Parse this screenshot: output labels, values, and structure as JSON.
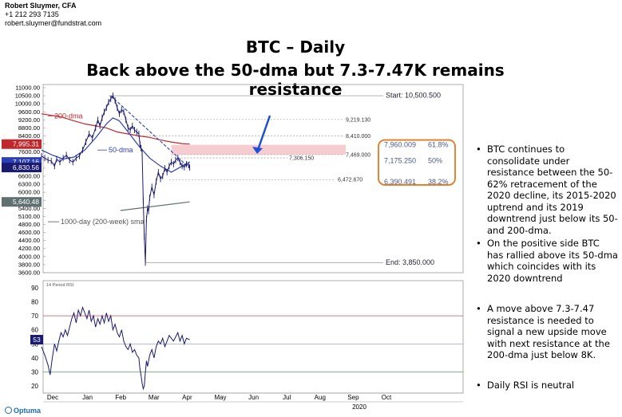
{
  "author": {
    "name": "Robert Sluymer, CFA",
    "phone": "+1 212 293 7135",
    "email": "robert.sluymer@fundstrat.com"
  },
  "title_line1": "BTC – Daily",
  "title_line2": "Back above the 50-dma but 7.3-7.47K remains resistance",
  "bullets": [
    "BTC continues to consolidate under resistance between the 50-62% retracement of the 2020 decline, its 2015-2020 uptrend and its 2019 downtrend just below its 50- and 200-dma.",
    "On the positive side BTC has rallied above its 50-dma which coincides with its 2020 downtrend",
    "A move above 7.3-7.47 resistance is needed to signal a new upside move with next resistance at the 200-dma just below 8K.",
    "Daily RSI is neutral"
  ],
  "logo": "Optuma",
  "colors": {
    "price": "#1a1a6e",
    "ma200": "#c0282d",
    "ma50": "#2b3fb8",
    "uptrend": "#607070",
    "resistance_zone": "#f3c4c9",
    "callout_border": "#e87722",
    "arrow": "#1f4fd6",
    "rsi": "#1a1a6e",
    "rsi_hi": "#c0282d",
    "rsi_lo": "#2e9a3a"
  },
  "chart_data": {
    "type": "line",
    "ylim": [
      3600,
      11000
    ],
    "y_ticks": [
      "11000.00",
      "10500.00",
      "10000.00",
      "9600.00",
      "9200.00",
      "8800.00",
      "8400.00",
      "8000.00",
      "7600.00",
      "7200.00",
      "6800.00",
      "6600.00",
      "6300.00",
      "6000.00",
      "5700.00",
      "5400.00",
      "5100.00",
      "4800.00",
      "4600.00",
      "4400.00",
      "4200.00",
      "4000.00",
      "3800.00",
      "3600.00"
    ],
    "x_ticks": [
      "Dec",
      "Jan",
      "Feb",
      "Mar",
      "Apr",
      "May",
      "Jun",
      "Jul",
      "Aug",
      "Sep",
      "Oct"
    ],
    "year_label": "2020",
    "price_labels": [
      {
        "text": "7,995.31",
        "value": 7995.31,
        "color": "#c0282d"
      },
      {
        "text": "7,107.16",
        "value": 7107.16,
        "color": "#2b3fb8"
      },
      {
        "text": "6,830.56",
        "value": 6830.56,
        "color": "#1a1a6e"
      },
      {
        "text": "5,640.48",
        "value": 5640.48,
        "color": "#607070"
      }
    ],
    "series": [
      {
        "name": "200-dma",
        "values": [
          [
            0,
            9500
          ],
          [
            10,
            9420
          ],
          [
            20,
            9320
          ],
          [
            30,
            9150
          ],
          [
            40,
            9000
          ],
          [
            50,
            8900
          ],
          [
            60,
            8800
          ],
          [
            70,
            8600
          ],
          [
            80,
            8500
          ],
          [
            90,
            8400
          ],
          [
            100,
            8330
          ],
          [
            110,
            8200
          ],
          [
            120,
            8100
          ],
          [
            130,
            8020
          ],
          [
            137,
            7995
          ]
        ]
      },
      {
        "name": "50-dma",
        "values": [
          [
            0,
            7700
          ],
          [
            10,
            7450
          ],
          [
            20,
            7250
          ],
          [
            30,
            7350
          ],
          [
            40,
            7700
          ],
          [
            50,
            8300
          ],
          [
            60,
            9000
          ],
          [
            66,
            9300
          ],
          [
            72,
            9150
          ],
          [
            80,
            8600
          ],
          [
            90,
            7900
          ],
          [
            100,
            7300
          ],
          [
            110,
            6900
          ],
          [
            120,
            6700
          ],
          [
            130,
            6900
          ],
          [
            137,
            7107
          ]
        ]
      },
      {
        "name": "1000-day (200-week) sma",
        "values": [
          [
            73,
            5320
          ],
          [
            137,
            5640
          ]
        ]
      }
    ],
    "price": [
      [
        0,
        7400
      ],
      [
        3,
        7300
      ],
      [
        6,
        7200
      ],
      [
        9,
        7150
      ],
      [
        12,
        6900
      ],
      [
        14,
        7250
      ],
      [
        17,
        7100
      ],
      [
        20,
        7300
      ],
      [
        23,
        7450
      ],
      [
        26,
        7200
      ],
      [
        29,
        7100
      ],
      [
        32,
        7300
      ],
      [
        35,
        7400
      ],
      [
        38,
        7700
      ],
      [
        41,
        8100
      ],
      [
        44,
        8500
      ],
      [
        47,
        8300
      ],
      [
        50,
        8800
      ],
      [
        52,
        9200
      ],
      [
        54,
        8900
      ],
      [
        56,
        9300
      ],
      [
        58,
        9600
      ],
      [
        60,
        9800
      ],
      [
        62,
        10100
      ],
      [
        64,
        10300
      ],
      [
        66,
        10500
      ],
      [
        68,
        10200
      ],
      [
        70,
        9800
      ],
      [
        72,
        9500
      ],
      [
        74,
        9700
      ],
      [
        76,
        9600
      ],
      [
        78,
        9200
      ],
      [
        80,
        8800
      ],
      [
        82,
        8700
      ],
      [
        84,
        8900
      ],
      [
        86,
        8700
      ],
      [
        88,
        8600
      ],
      [
        90,
        8500
      ],
      [
        91,
        8000
      ],
      [
        92,
        7800
      ],
      [
        93,
        7600
      ],
      [
        94,
        5700
      ],
      [
        95,
        4500
      ],
      [
        96,
        3850
      ],
      [
        97,
        5000
      ],
      [
        98,
        5400
      ],
      [
        99,
        5300
      ],
      [
        100,
        5800
      ],
      [
        102,
        6200
      ],
      [
        104,
        5900
      ],
      [
        106,
        6400
      ],
      [
        108,
        6700
      ],
      [
        110,
        6500
      ],
      [
        112,
        6600
      ],
      [
        114,
        6800
      ],
      [
        116,
        6700
      ],
      [
        118,
        6900
      ],
      [
        120,
        7100
      ],
      [
        122,
        7000
      ],
      [
        124,
        7200
      ],
      [
        126,
        7300
      ],
      [
        128,
        7100
      ],
      [
        130,
        6900
      ],
      [
        132,
        6850
      ],
      [
        134,
        7000
      ],
      [
        136,
        6950
      ],
      [
        137,
        6830
      ]
    ],
    "annotations": [
      {
        "text": "Start:  10,500.500",
        "value": 10500.5
      },
      {
        "text": "9,219.130",
        "value": 9219.13
      },
      {
        "text": "8,410.000",
        "value": 8410
      },
      {
        "text": "7,469.000",
        "value": 7469
      },
      {
        "text": "7,306.150",
        "value": 7306.15
      },
      {
        "text": "6,472.670",
        "value": 6472.67
      },
      {
        "text": "End:  3,850.000",
        "value": 3850
      }
    ],
    "retracements": [
      {
        "text": "7,960.009",
        "pct": "61.8%",
        "value": 7960.009
      },
      {
        "text": "7,175.250",
        "pct": "50%",
        "value": 7175.25
      },
      {
        "text": "6,390.491",
        "pct": "38.2%",
        "value": 6390.491
      }
    ],
    "ma_labels": {
      "ma200": "200-dma",
      "ma50": "50-dma",
      "sma1000": "1000-day (200-week) sma"
    },
    "rsi": {
      "title": "14 Period RSI",
      "ylim": [
        15,
        95
      ],
      "y_ticks": [
        90,
        80,
        70,
        60,
        50,
        40,
        30,
        20
      ],
      "upper": 70,
      "lower": 30,
      "mid": 50,
      "current_label": "53",
      "values": [
        [
          0,
          48
        ],
        [
          3,
          42
        ],
        [
          6,
          35
        ],
        [
          8,
          28
        ],
        [
          10,
          40
        ],
        [
          12,
          50
        ],
        [
          14,
          45
        ],
        [
          16,
          52
        ],
        [
          18,
          58
        ],
        [
          20,
          55
        ],
        [
          22,
          60
        ],
        [
          24,
          56
        ],
        [
          26,
          62
        ],
        [
          28,
          68
        ],
        [
          30,
          72
        ],
        [
          32,
          65
        ],
        [
          34,
          74
        ],
        [
          36,
          70
        ],
        [
          38,
          76
        ],
        [
          40,
          72
        ],
        [
          42,
          68
        ],
        [
          44,
          74
        ],
        [
          46,
          66
        ],
        [
          48,
          70
        ],
        [
          50,
          62
        ],
        [
          52,
          68
        ],
        [
          54,
          64
        ],
        [
          56,
          70
        ],
        [
          58,
          65
        ],
        [
          60,
          72
        ],
        [
          62,
          66
        ],
        [
          64,
          70
        ],
        [
          66,
          60
        ],
        [
          68,
          64
        ],
        [
          70,
          58
        ],
        [
          72,
          55
        ],
        [
          74,
          60
        ],
        [
          76,
          52
        ],
        [
          78,
          48
        ],
        [
          80,
          46
        ],
        [
          82,
          50
        ],
        [
          84,
          44
        ],
        [
          86,
          46
        ],
        [
          88,
          42
        ],
        [
          90,
          40
        ],
        [
          91,
          32
        ],
        [
          92,
          28
        ],
        [
          93,
          22
        ],
        [
          94,
          18
        ],
        [
          95,
          20
        ],
        [
          96,
          30
        ],
        [
          97,
          38
        ],
        [
          98,
          34
        ],
        [
          100,
          42
        ],
        [
          102,
          46
        ],
        [
          104,
          40
        ],
        [
          106,
          48
        ],
        [
          108,
          52
        ],
        [
          110,
          50
        ],
        [
          112,
          54
        ],
        [
          114,
          48
        ],
        [
          116,
          52
        ],
        [
          118,
          56
        ],
        [
          120,
          54
        ],
        [
          122,
          52
        ],
        [
          124,
          55
        ],
        [
          126,
          58
        ],
        [
          128,
          52
        ],
        [
          130,
          56
        ],
        [
          132,
          50
        ],
        [
          134,
          54
        ],
        [
          137,
          53
        ]
      ]
    }
  }
}
